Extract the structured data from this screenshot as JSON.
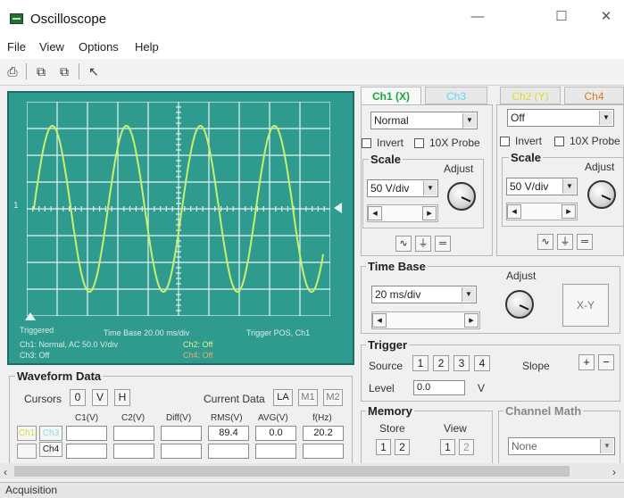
{
  "window": {
    "title": "Oscilloscope",
    "minimize": "—",
    "maximize": "☐",
    "close": "✕"
  },
  "menu": [
    "File",
    "View",
    "Options",
    "Help"
  ],
  "toolbar_icons": [
    "print-icon",
    "copy-icon",
    "paste-icon",
    "cursor-icon"
  ],
  "display": {
    "trigger_marker": "1",
    "status_triggered": "Triggered",
    "time_base_text": "Time Base 20.00 ms/div",
    "trigger_text": "Trigger POS, Ch1",
    "ch1_text": "Ch1: Normal, AC 50.0 V/div",
    "ch2_text": "Ch2: Off",
    "ch3_text": "Ch3: Off",
    "ch4_text": "Ch4: Off",
    "waveform_color": "#c8f070",
    "background_color": "#2f9a8e"
  },
  "channels": {
    "tabs": [
      "Ch1 (X)",
      "Ch3",
      "Ch2 (Y)",
      "Ch4"
    ],
    "ch1": {
      "mode": "Normal",
      "invert": "Invert",
      "probe": "10X Probe",
      "scale_label": "Scale",
      "adjust_label": "Adjust",
      "scale": "50 V/div"
    },
    "ch2": {
      "mode": "Off",
      "invert": "Invert",
      "probe": "10X Probe",
      "scale_label": "Scale",
      "adjust_label": "Adjust",
      "scale": "50 V/div"
    }
  },
  "timebase": {
    "title": "Time Base",
    "adjust_label": "Adjust",
    "value": "20 ms/div",
    "xy": "X-Y"
  },
  "trigger": {
    "title": "Trigger",
    "source_label": "Source",
    "sources": [
      "1",
      "2",
      "3",
      "4"
    ],
    "slope_label": "Slope",
    "level_label": "Level",
    "level_value": "0.0",
    "level_unit": "V"
  },
  "memory": {
    "title": "Memory",
    "store_label": "Store",
    "view_label": "View",
    "buttons": [
      "1",
      "2"
    ]
  },
  "math": {
    "title": "Channel Math",
    "value": "None"
  },
  "waveform_data": {
    "title": "Waveform Data",
    "cursors_label": "Cursors",
    "cursor_buttons": [
      "0",
      "V",
      "H"
    ],
    "current_data_label": "Current Data",
    "data_buttons": [
      "LA",
      "M1",
      "M2"
    ],
    "columns": [
      "C1(V)",
      "C2(V)",
      "Diff(V)",
      "RMS(V)",
      "AVG(V)",
      "f(Hz)"
    ],
    "row_ch1": {
      "label": "Ch1",
      "values": [
        "",
        "",
        "",
        "89.4",
        "0.0",
        "20.2"
      ]
    },
    "row_ch4": {
      "label": "Ch4"
    },
    "ch3_label": "Ch3"
  },
  "status": "Acquisition"
}
